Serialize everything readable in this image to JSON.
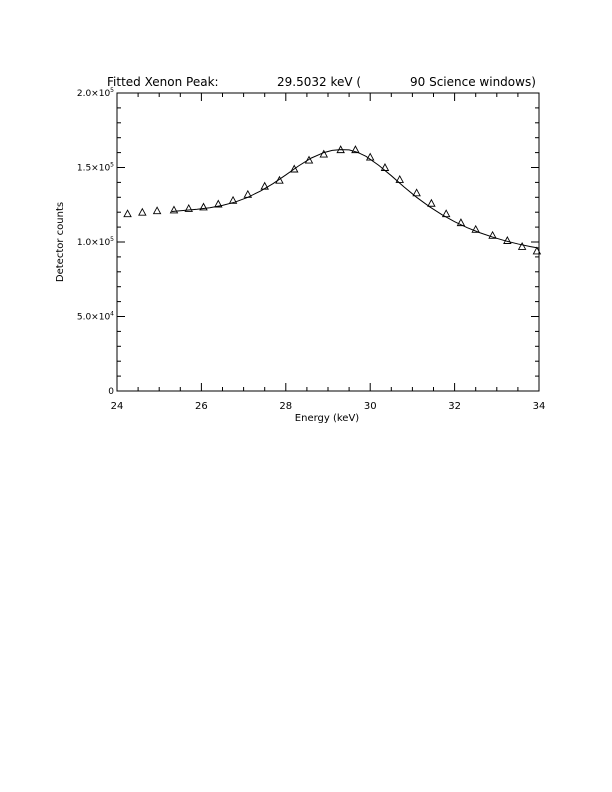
{
  "chart_data": {
    "type": "scatter",
    "title_parts": [
      "Fitted Xenon Peak:",
      "29.5032 keV (",
      "90 Science windows)"
    ],
    "xlabel": "Energy (keV)",
    "ylabel": "Detector counts",
    "xlim": [
      24,
      34
    ],
    "ylim": [
      0,
      200000
    ],
    "x_ticks": [
      {
        "value": 24,
        "label": "24"
      },
      {
        "value": 26,
        "label": "26"
      },
      {
        "value": 28,
        "label": "28"
      },
      {
        "value": 30,
        "label": "30"
      },
      {
        "value": 32,
        "label": "32"
      },
      {
        "value": 34,
        "label": "34"
      }
    ],
    "y_ticks": [
      {
        "value": 0,
        "mant": "0",
        "exp": ""
      },
      {
        "value": 50000,
        "mant": "5.0×10",
        "exp": "4"
      },
      {
        "value": 100000,
        "mant": "1.0×10",
        "exp": "5"
      },
      {
        "value": 150000,
        "mant": "1.5×10",
        "exp": "5"
      },
      {
        "value": 200000,
        "mant": "2.0×10",
        "exp": "5"
      }
    ],
    "x_minor_step": 0.5,
    "y_minor_step": 10000,
    "grid": false,
    "series": [
      {
        "marker": "triangle",
        "x": [
          24.25,
          24.6,
          24.95,
          25.35,
          25.7,
          26.05,
          26.4,
          26.75,
          27.1,
          27.5,
          27.85,
          28.2,
          28.55,
          28.9,
          29.3,
          29.65,
          30.0,
          30.35,
          30.7,
          31.1,
          31.45,
          31.8,
          32.15,
          32.5,
          32.9,
          33.25,
          33.6,
          33.95
        ],
        "y": [
          119000,
          120000,
          121000,
          121500,
          122500,
          123500,
          125500,
          128000,
          132000,
          137500,
          141500,
          149000,
          155000,
          159000,
          162000,
          162000,
          157000,
          150000,
          142000,
          133000,
          126000,
          119000,
          113000,
          108500,
          104500,
          101000,
          97000,
          94000
        ]
      },
      {
        "marker": "line",
        "x": [
          25.3,
          25.6,
          25.9,
          26.2,
          26.5,
          26.8,
          27.1,
          27.4,
          27.7,
          28.0,
          28.3,
          28.6,
          28.9,
          29.1,
          29.3,
          29.5,
          29.7,
          29.9,
          30.2,
          30.5,
          30.8,
          31.1,
          31.4,
          31.7,
          32.0,
          32.3,
          32.6,
          32.9,
          33.2,
          33.5,
          33.8,
          34.0
        ],
        "y": [
          120500,
          121200,
          122000,
          123000,
          124600,
          126800,
          130000,
          134200,
          139200,
          145000,
          151000,
          156300,
          160000,
          161500,
          162000,
          161800,
          160200,
          157500,
          151500,
          144500,
          137000,
          130000,
          123800,
          118300,
          113600,
          109600,
          106200,
          103300,
          100800,
          98700,
          96900,
          95900
        ]
      }
    ]
  }
}
